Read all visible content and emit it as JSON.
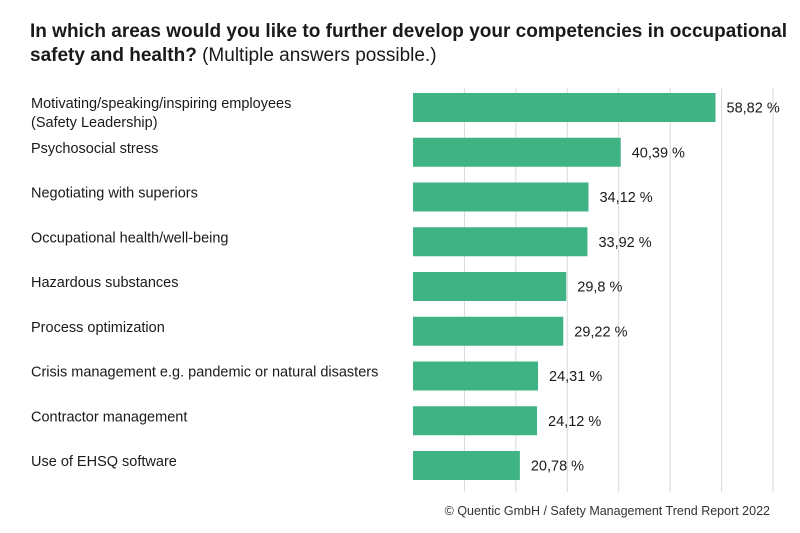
{
  "title": {
    "bold": "In which areas would you like to further develop your competencies in occupational safety and health?",
    "normal": "(Multiple answers possible.)"
  },
  "footer": "© Quentic GmbH / Safety Management Trend Report 2022",
  "colors": {
    "bar": "#3fb383",
    "grid": "#d9d9d9"
  },
  "chart_data": {
    "type": "bar",
    "orientation": "horizontal",
    "categories": [
      [
        "Motivating/speaking/inspiring employees",
        "(Safety Leadership)"
      ],
      [
        "Psychosocial stress"
      ],
      [
        "Negotiating with superiors"
      ],
      [
        "Occupational health/well-being"
      ],
      [
        "Hazardous substances"
      ],
      [
        "Process optimization"
      ],
      [
        "Crisis management e.g. pandemic or natural disasters"
      ],
      [
        "Contractor management"
      ],
      [
        "Use of EHSQ software"
      ]
    ],
    "values": [
      58.82,
      40.39,
      34.12,
      33.92,
      29.8,
      29.22,
      24.31,
      24.12,
      20.78
    ],
    "value_labels": [
      "58,82 %",
      "40,39 %",
      "34,12 %",
      "33,92 %",
      "29,8 %",
      "29,22 %",
      "24,31 %",
      "24,12 %",
      "20,78 %"
    ],
    "xlim": [
      0,
      70
    ],
    "grid": true,
    "gridlines_every": 10
  }
}
